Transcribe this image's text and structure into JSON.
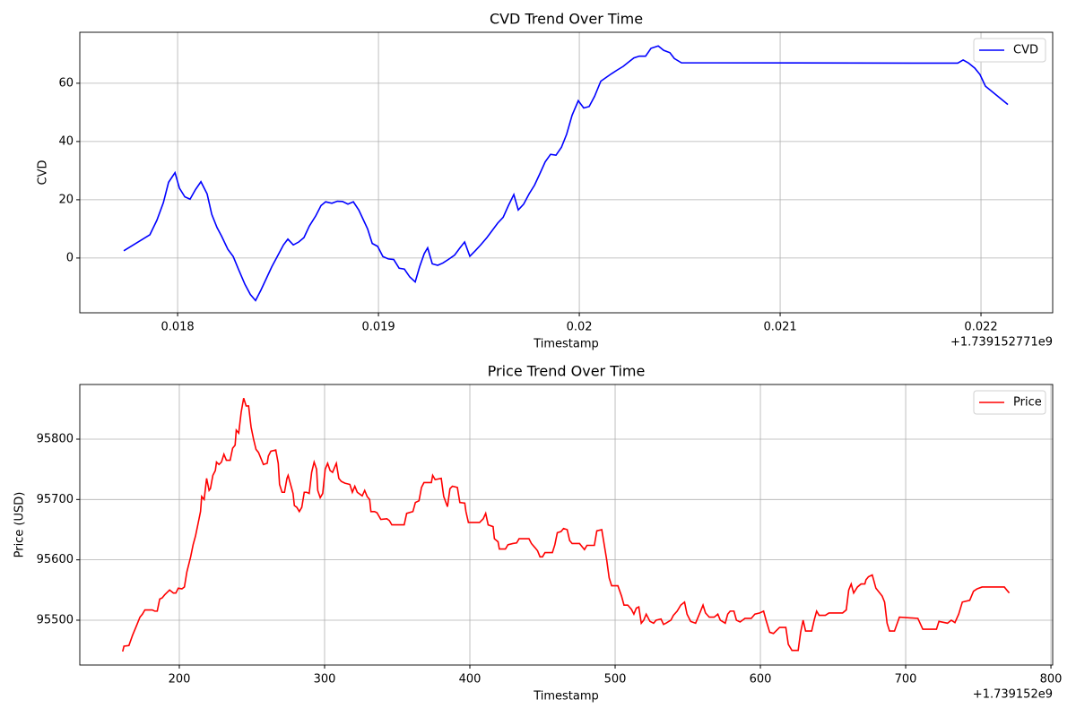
{
  "chart_data": [
    {
      "type": "line",
      "title": "CVD Trend Over Time",
      "xlabel": "Timestamp",
      "ylabel": "CVD",
      "x_offset": "+1.739152771e9",
      "grid": true,
      "legend": "upper right",
      "xlim": [
        0.017513,
        0.022357
      ],
      "ylim": [
        -18.8,
        77.5
      ],
      "xticks": [
        0.018,
        0.019,
        0.02,
        0.021,
        0.022
      ],
      "yticks": [
        0,
        20,
        40,
        60
      ],
      "x": [
        0.017732,
        0.017862,
        0.017897,
        0.017929,
        0.017955,
        0.017987,
        0.018009,
        0.018036,
        0.018062,
        0.018089,
        0.018116,
        0.018147,
        0.01817,
        0.018196,
        0.018219,
        0.01825,
        0.018277,
        0.018304,
        0.018335,
        0.018362,
        0.018388,
        0.018415,
        0.018442,
        0.018469,
        0.0185,
        0.018527,
        0.018549,
        0.018576,
        0.018603,
        0.018629,
        0.018656,
        0.018688,
        0.018714,
        0.018737,
        0.018768,
        0.018795,
        0.018821,
        0.018848,
        0.018875,
        0.018902,
        0.018929,
        0.018946,
        0.018969,
        0.018996,
        0.019022,
        0.019049,
        0.019076,
        0.019103,
        0.019129,
        0.019156,
        0.019183,
        0.019205,
        0.019228,
        0.019245,
        0.019268,
        0.019295,
        0.019321,
        0.019348,
        0.019379,
        0.019406,
        0.019429,
        0.019455,
        0.019482,
        0.019509,
        0.01954,
        0.019567,
        0.019594,
        0.019621,
        0.019647,
        0.019674,
        0.019696,
        0.019723,
        0.01975,
        0.019777,
        0.019804,
        0.01983,
        0.019857,
        0.019884,
        0.019911,
        0.019937,
        0.019964,
        0.019995,
        0.020022,
        0.020049,
        0.020076,
        0.020107,
        0.020134,
        0.020161,
        0.020188,
        0.020219,
        0.020246,
        0.020272,
        0.020299,
        0.02033,
        0.020357,
        0.020393,
        0.02042,
        0.020451,
        0.020473,
        0.020509,
        0.020687,
        0.021884,
        0.021911,
        0.021937,
        0.021969,
        0.021995,
        0.022022,
        0.022134
      ],
      "series": [
        {
          "name": "CVD",
          "color": "#0000ff",
          "values": [
            2.5,
            8,
            13,
            19,
            26,
            29.3,
            24,
            21,
            20.2,
            23.5,
            26.2,
            22,
            15,
            10.5,
            7.5,
            3,
            0.5,
            -4,
            -9,
            -12.5,
            -14.6,
            -11,
            -7,
            -3,
            1,
            4.5,
            6.5,
            4.5,
            5.5,
            7,
            11,
            14.5,
            18,
            19.3,
            18.8,
            19.5,
            19.4,
            18.5,
            19.3,
            16.5,
            12.5,
            10,
            5,
            4,
            0.5,
            -0.3,
            -0.5,
            -3.5,
            -3.8,
            -6.5,
            -8.2,
            -3,
            1.5,
            3.5,
            -2,
            -2.5,
            -1.7,
            -0.5,
            1,
            3.5,
            5.5,
            0.6,
            2.5,
            4.5,
            7,
            9.5,
            12,
            14,
            18,
            21.8,
            16.5,
            18.5,
            22,
            25,
            29,
            33,
            35.6,
            35.3,
            38,
            42.5,
            49,
            54,
            51.5,
            52,
            55.5,
            60.7,
            62,
            63.3,
            64.5,
            65.8,
            67.3,
            68.7,
            69.3,
            69.3,
            72,
            72.8,
            71.3,
            70.5,
            68.5,
            67,
            67,
            66.9,
            68,
            67,
            65.2,
            63,
            59,
            52.7
          ]
        }
      ]
    },
    {
      "type": "line",
      "title": "Price Trend Over Time",
      "xlabel": "Timestamp",
      "ylabel": "Price (USD)",
      "x_offset": "+1.739152e9",
      "grid": true,
      "legend": "upper right",
      "xlim": [
        131.5,
        801.2
      ],
      "ylim": [
        95425.7,
        95890.6
      ],
      "xticks": [
        200,
        300,
        400,
        500,
        600,
        700,
        800
      ],
      "yticks": [
        95500,
        95600,
        95700,
        95800
      ],
      "x": [
        161,
        161.9,
        165.3,
        167.8,
        170.4,
        172.9,
        174.6,
        176.3,
        181.4,
        183.1,
        184.8,
        186.5,
        188.2,
        189.9,
        193.3,
        195.9,
        197.6,
        199.3,
        201.8,
        203.5,
        205.2,
        207.8,
        209.5,
        211.2,
        212.9,
        214.6,
        215.4,
        217.1,
        218.8,
        220.5,
        221.4,
        223.1,
        224.8,
        225.6,
        227.3,
        229,
        230.7,
        232.4,
        235,
        236.7,
        238.4,
        239.2,
        240.9,
        242.6,
        244.3,
        246,
        247.7,
        249.4,
        251.1,
        252.8,
        254.5,
        256.2,
        257.9,
        260.5,
        261.3,
        263,
        266.4,
        268.1,
        269,
        270.7,
        272.4,
        274.1,
        274.9,
        276.6,
        278.3,
        279.2,
        280.9,
        282.6,
        284.3,
        286,
        287.7,
        289.4,
        291.1,
        292.8,
        294.5,
        295.3,
        297,
        298.7,
        300.4,
        302.1,
        303.8,
        305.5,
        307.2,
        308.1,
        309.8,
        311.5,
        314,
        317.4,
        319.1,
        320.8,
        322.5,
        325.9,
        327.6,
        329.3,
        331,
        331.9,
        334.4,
        336.1,
        338.7,
        342.9,
        344.6,
        346.3,
        354.8,
        356.5,
        360.8,
        362.5,
        365,
        366.7,
        368.4,
        373.5,
        374.4,
        376.1,
        380.3,
        382,
        384.6,
        386.3,
        388,
        391.4,
        393.1,
        396.5,
        397.3,
        399,
        406.7,
        409.2,
        410.9,
        412.6,
        416,
        416.9,
        419.4,
        420.3,
        424.5,
        426.2,
        429.6,
        432.2,
        433.9,
        440.7,
        442.4,
        444.9,
        446.6,
        448.3,
        450,
        451.7,
        456.8,
        458.5,
        460.2,
        462.8,
        464.5,
        467,
        468.7,
        470.4,
        475.5,
        477.2,
        478.9,
        480.6,
        485.7,
        487.4,
        490.8,
        492.5,
        494.2,
        495.9,
        497.6,
        501.9,
        504.4,
        506.1,
        508.7,
        511.2,
        512.9,
        514.6,
        516.3,
        518,
        519.7,
        521.4,
        524,
        526.5,
        528.2,
        531.6,
        533.3,
        535,
        538.4,
        540.1,
        542.7,
        545.2,
        547.8,
        549.5,
        552,
        555.4,
        558,
        560.5,
        562.2,
        564.8,
        568.2,
        570.7,
        572.4,
        575.8,
        577.5,
        579.2,
        581.8,
        583.5,
        586,
        589.4,
        593.7,
        596.2,
        599.6,
        602.2,
        603.9,
        606.4,
        609,
        613.2,
        617.5,
        619.2,
        621.7,
        626,
        627.7,
        629.4,
        631.1,
        635.3,
        637,
        638.7,
        640.4,
        644.7,
        647.2,
        656.6,
        659.1,
        660.8,
        662.5,
        664.2,
        666.8,
        669.3,
        671.9,
        672.7,
        674.4,
        677,
        677.8,
        679.5,
        683.8,
        685.5,
        687.2,
        688.9,
        692.3,
        695.7,
        708.4,
        711.8,
        721.2,
        722.9,
        728.8,
        731.4,
        733.9,
        736.5,
        739,
        744.1,
        746.7,
        749.2,
        752.6,
        767.9,
        769.6,
        771.3
      ],
      "series": [
        {
          "name": "Price",
          "color": "#ff0000",
          "values": [
            95448,
            95457,
            95458,
            95475,
            95490,
            95505,
            95510,
            95517,
            95517,
            95515,
            95515,
            95535,
            95537,
            95542,
            95550,
            95545,
            95545,
            95553,
            95552,
            95555,
            95580,
            95605,
            95625,
            95640,
            95660,
            95680,
            95705,
            95700,
            95735,
            95715,
            95718,
            95740,
            95748,
            95762,
            95758,
            95762,
            95775,
            95765,
            95765,
            95785,
            95790,
            95815,
            95810,
            95845,
            95868,
            95855,
            95855,
            95820,
            95800,
            95783,
            95778,
            95768,
            95758,
            95760,
            95772,
            95780,
            95782,
            95760,
            95725,
            95712,
            95712,
            95735,
            95740,
            95725,
            95710,
            95690,
            95687,
            95680,
            95687,
            95712,
            95712,
            95710,
            95745,
            95762,
            95750,
            95715,
            95703,
            95710,
            95750,
            95760,
            95748,
            95745,
            95755,
            95760,
            95735,
            95730,
            95727,
            95725,
            95712,
            95722,
            95712,
            95706,
            95715,
            95705,
            95700,
            95680,
            95680,
            95678,
            95667,
            95668,
            95665,
            95658,
            95658,
            95677,
            95680,
            95695,
            95698,
            95720,
            95728,
            95728,
            95740,
            95733,
            95735,
            95705,
            95688,
            95718,
            95722,
            95720,
            95695,
            95694,
            95680,
            95662,
            95662,
            95668,
            95677,
            95658,
            95655,
            95635,
            95630,
            95618,
            95618,
            95625,
            95627,
            95628,
            95635,
            95635,
            95627,
            95620,
            95615,
            95605,
            95605,
            95612,
            95612,
            95625,
            95645,
            95647,
            95652,
            95650,
            95632,
            95627,
            95627,
            95622,
            95617,
            95624,
            95624,
            95648,
            95650,
            95625,
            95600,
            95570,
            95557,
            95557,
            95540,
            95525,
            95525,
            95518,
            95510,
            95520,
            95522,
            95495,
            95500,
            95510,
            95498,
            95495,
            95500,
            95502,
            95493,
            95495,
            95500,
            95508,
            95515,
            95525,
            95530,
            95510,
            95498,
            95495,
            95510,
            95525,
            95512,
            95505,
            95505,
            95510,
            95500,
            95495,
            95510,
            95515,
            95515,
            95500,
            95497,
            95503,
            95503,
            95510,
            95512,
            95515,
            95500,
            95480,
            95478,
            95488,
            95488,
            95460,
            95450,
            95450,
            95480,
            95500,
            95482,
            95482,
            95500,
            95515,
            95508,
            95508,
            95512,
            95512,
            95517,
            95550,
            95560,
            95545,
            95555,
            95560,
            95560,
            95567,
            95572,
            95575,
            95568,
            95553,
            95540,
            95530,
            95495,
            95482,
            95482,
            95505,
            95503,
            95485,
            95485,
            95498,
            95495,
            95500,
            95496,
            95510,
            95530,
            95533,
            95548,
            95552,
            95555,
            95555,
            95550,
            95545
          ]
        }
      ]
    }
  ]
}
